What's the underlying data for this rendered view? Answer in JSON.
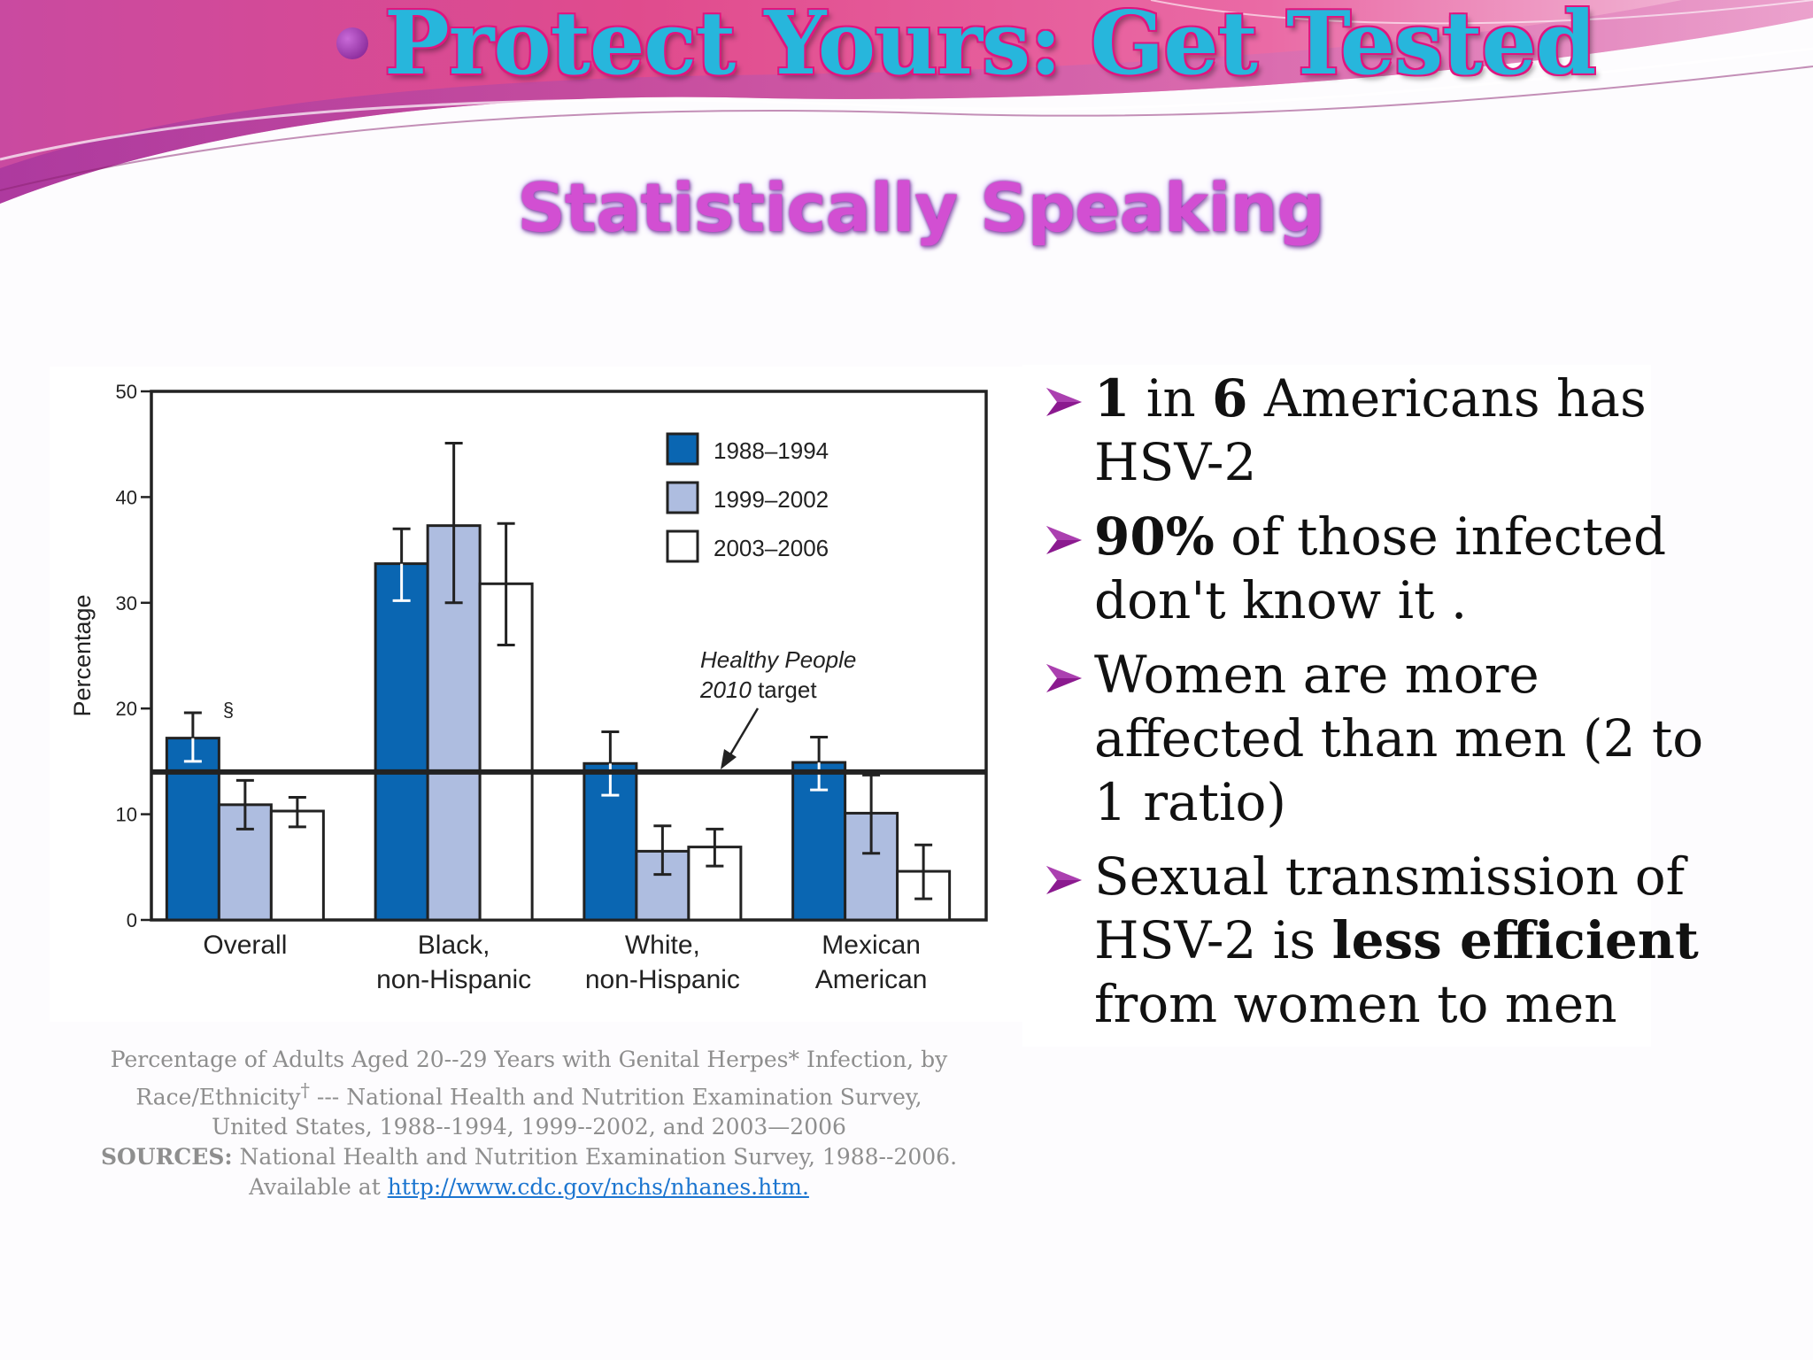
{
  "header": {
    "title": "Protect Yours: Get Tested",
    "subtitle": "Statistically Speaking"
  },
  "theme": {
    "title_color": "#27b6dc",
    "title_outline": "#e0157f",
    "subtitle_color": "#d24fd2",
    "banner_pink": "#e24a8f",
    "banner_purple": "#a83ba6",
    "bullet_color": "#8b1a8f"
  },
  "chart_data": {
    "type": "bar",
    "ylabel": "Percentage",
    "ylim": [
      0,
      50
    ],
    "yticks": [
      "0",
      "10",
      "20",
      "30",
      "40",
      "50"
    ],
    "categories": [
      "Overall",
      "Black, non-Hispanic",
      "White, non-Hispanic",
      "Mexican American"
    ],
    "category_lines": [
      [
        "Overall"
      ],
      [
        "Black,",
        "non-Hispanic"
      ],
      [
        "White,",
        "non-Hispanic"
      ],
      [
        "Mexican",
        "American"
      ]
    ],
    "series": [
      {
        "name": "1988–1994",
        "color": "#0a66b2",
        "values": [
          17.2,
          33.7,
          14.8,
          14.9
        ],
        "error_low": [
          15.0,
          30.2,
          11.8,
          12.3
        ],
        "error_high": [
          19.6,
          37.0,
          17.8,
          17.3
        ]
      },
      {
        "name": "1999–2002",
        "color": "#aebde0",
        "values": [
          10.9,
          37.3,
          6.5,
          10.1
        ],
        "error_low": [
          8.6,
          30.0,
          4.3,
          6.3
        ],
        "error_high": [
          13.2,
          45.1,
          8.9,
          13.7
        ]
      },
      {
        "name": "2003–2006",
        "color": "#ffffff",
        "values": [
          10.3,
          31.8,
          6.9,
          4.6
        ],
        "error_low": [
          8.8,
          26.0,
          5.1,
          2.0
        ],
        "error_high": [
          11.6,
          37.5,
          8.6,
          7.1
        ]
      }
    ],
    "target_line": {
      "value": 14.0,
      "label_line1": "Healthy People",
      "label_line2_italic": "2010",
      "label_line2_rest": " target"
    },
    "annotation_mark": "§",
    "legend_position": "top-right",
    "grid": false
  },
  "bullets": [
    {
      "parts": [
        {
          "text": "1",
          "bold": true
        },
        {
          "text": " in ",
          "bold": false
        },
        {
          "text": "6",
          "bold": true
        },
        {
          "text": " Americans has HSV-2",
          "bold": false
        }
      ]
    },
    {
      "parts": [
        {
          "text": "90%",
          "bold": true
        },
        {
          "text": " of  those infected don't know it .",
          "bold": false
        }
      ]
    },
    {
      "parts": [
        {
          "text": "Women are more affected than men (2 to 1 ratio)",
          "bold": false
        }
      ]
    },
    {
      "parts": [
        {
          "text": "Sexual transmission of HSV-2 is ",
          "bold": false
        },
        {
          "text": "less efficient",
          "bold": true
        },
        {
          "text": " from women to men",
          "bold": false
        }
      ]
    }
  ],
  "caption": {
    "line1": "Percentage of Adults Aged 20--29 Years with Genital Herpes* Infection, by",
    "line2_a": "Race/Ethnicity",
    "line2_sup": "†",
    "line2_b": " --- National Health and Nutrition Examination Survey,",
    "line3": "United States, 1988--1994, 1999--2002, and 2003—2006",
    "sources_label": "SOURCES:",
    "sources_text": " National Health and Nutrition Examination Survey, 1988--2006.",
    "available_text": "Available at ",
    "link_text": "http://www.cdc.gov/nchs/nhanes.htm."
  }
}
